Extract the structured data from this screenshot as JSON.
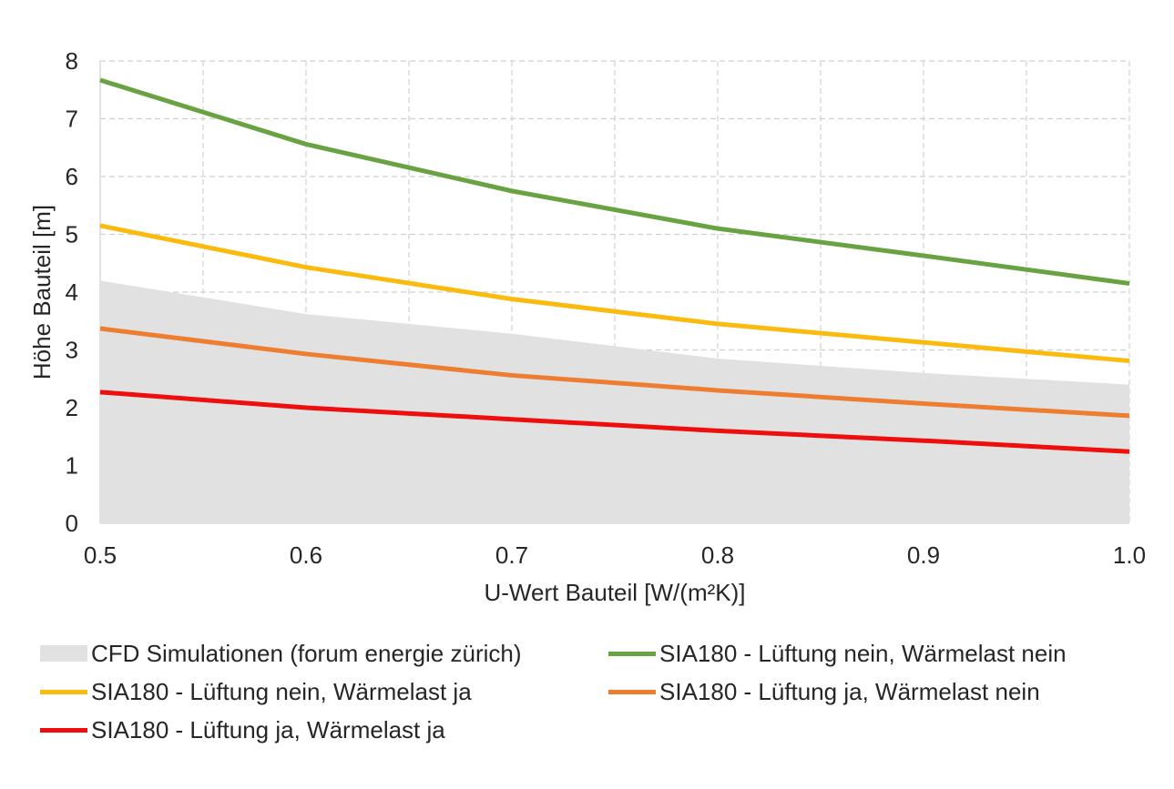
{
  "chart_data": {
    "type": "line",
    "xlabel": "U-Wert Bauteil  [W/(m²K)]",
    "ylabel": "Höhe Bauteil [m]",
    "xlim": [
      0.5,
      1.0
    ],
    "ylim": [
      0,
      8
    ],
    "x_ticks": [
      "0.5",
      "0.6",
      "0.7",
      "0.8",
      "0.9",
      "1.0"
    ],
    "y_ticks": [
      "0",
      "1",
      "2",
      "3",
      "4",
      "5",
      "6",
      "7",
      "8"
    ],
    "grid": "dashed",
    "x": [
      0.5,
      0.6,
      0.7,
      0.8,
      0.9,
      1.0
    ],
    "area": {
      "name": "CFD Simulationen (forum energie zürich)",
      "color": "#e1e1e2",
      "values": [
        4.2,
        3.62,
        3.28,
        2.85,
        2.6,
        2.4
      ]
    },
    "series": [
      {
        "name": "SIA180 - Lüftung nein, Wärmelast nein",
        "color": "#69a341",
        "values": [
          7.67,
          6.56,
          5.75,
          5.1,
          4.63,
          4.15
        ]
      },
      {
        "name": "SIA180 - Lüftung nein, Wärmelast ja",
        "color": "#fbbb0e",
        "values": [
          5.15,
          4.43,
          3.88,
          3.45,
          3.13,
          2.81
        ]
      },
      {
        "name": "SIA180 - Lüftung ja, Wärmelast nein",
        "color": "#ed7e31",
        "values": [
          3.37,
          2.93,
          2.56,
          2.3,
          2.07,
          1.86
        ]
      },
      {
        "name": "SIA180 - Lüftung ja, Wärmelast ja",
        "color": "#ee0e0e",
        "values": [
          2.27,
          2.0,
          1.8,
          1.6,
          1.43,
          1.24
        ]
      }
    ],
    "legend_position": "bottom"
  }
}
